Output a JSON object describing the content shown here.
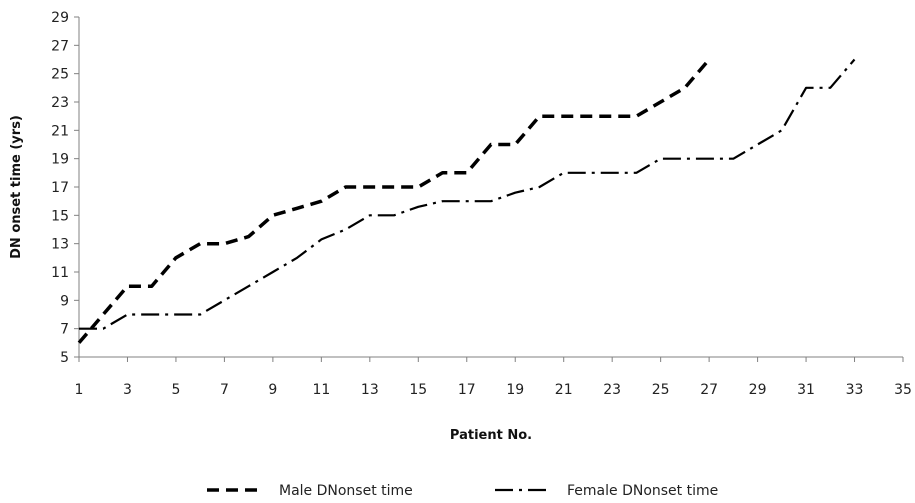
{
  "chart_data": {
    "type": "line",
    "xlabel": "Patient No.",
    "ylabel": "DN onset time (yrs)",
    "xlim": [
      1,
      35
    ],
    "ylim": [
      5,
      29
    ],
    "x_ticks": [
      1,
      3,
      5,
      7,
      9,
      11,
      13,
      15,
      17,
      19,
      21,
      23,
      25,
      27,
      29,
      31,
      33,
      35
    ],
    "y_ticks": [
      5,
      7,
      9,
      11,
      13,
      15,
      17,
      19,
      21,
      23,
      25,
      27,
      29
    ],
    "grid": false,
    "legend_position": "bottom",
    "series": [
      {
        "name": "Male DNonset time",
        "style": "dashed",
        "color": "#000000",
        "x": [
          1,
          2,
          3,
          4,
          5,
          6,
          7,
          8,
          9,
          10,
          11,
          12,
          13,
          14,
          15,
          16,
          17,
          18,
          19,
          20,
          21,
          22,
          23,
          24,
          25,
          26,
          27
        ],
        "y": [
          6,
          8,
          10,
          10,
          12,
          13,
          13,
          13.5,
          15,
          15.5,
          16,
          17,
          17,
          17,
          17,
          18,
          18,
          20,
          20,
          22,
          22,
          22,
          22,
          22,
          23,
          24,
          26
        ]
      },
      {
        "name": "Female  DNonset time",
        "style": "dash-dot",
        "color": "#000000",
        "x": [
          1,
          2,
          3,
          4,
          5,
          6,
          7,
          8,
          9,
          10,
          11,
          12,
          13,
          14,
          15,
          16,
          17,
          18,
          19,
          20,
          21,
          22,
          23,
          24,
          25,
          26,
          27,
          28,
          29,
          30,
          31,
          32,
          33
        ],
        "y": [
          7,
          7,
          8,
          8,
          8,
          8,
          9,
          10,
          11,
          12,
          13.3,
          14,
          15,
          15,
          15.6,
          16,
          16,
          16,
          16.6,
          17,
          18,
          18,
          18,
          18,
          19,
          19,
          19,
          19,
          20,
          21,
          24,
          24,
          26
        ]
      }
    ]
  }
}
